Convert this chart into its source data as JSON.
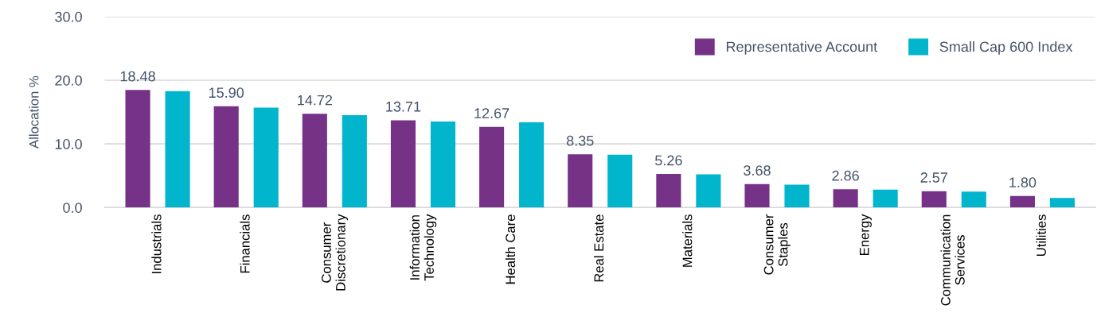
{
  "chart_data": {
    "type": "bar",
    "ylabel": "Allocation %",
    "categories": [
      "Industrials",
      "Financials",
      "Consumer\nDiscretionary",
      "Information\nTechnology",
      "Health Care",
      "Real Estate",
      "Materials",
      "Consumer\nStaples",
      "Energy",
      "Communication\nServices",
      "Utilities"
    ],
    "series": [
      {
        "name": "Representative Account",
        "color": "#753287",
        "values": [
          18.48,
          15.9,
          14.72,
          13.71,
          12.67,
          8.35,
          5.26,
          3.68,
          2.86,
          2.57,
          1.8
        ],
        "value_labels": [
          "18.48",
          "15.90",
          "14.72",
          "13.71",
          "12.67",
          "8.35",
          "5.26",
          "3.68",
          "2.86",
          "2.57",
          "1.80"
        ]
      },
      {
        "name": "Small Cap 600 Index",
        "color": "#00b5cc",
        "values": [
          18.3,
          15.7,
          14.5,
          13.5,
          13.4,
          8.3,
          5.2,
          3.6,
          2.8,
          2.5,
          1.5
        ]
      }
    ],
    "ylim": [
      0,
      30
    ],
    "yticks": [
      {
        "value": 0,
        "label": "0.0"
      },
      {
        "value": 10,
        "label": "10.0"
      },
      {
        "value": 20,
        "label": "20.0"
      },
      {
        "value": 30,
        "label": "30.0"
      }
    ],
    "grid": "y",
    "legend": "top right"
  }
}
